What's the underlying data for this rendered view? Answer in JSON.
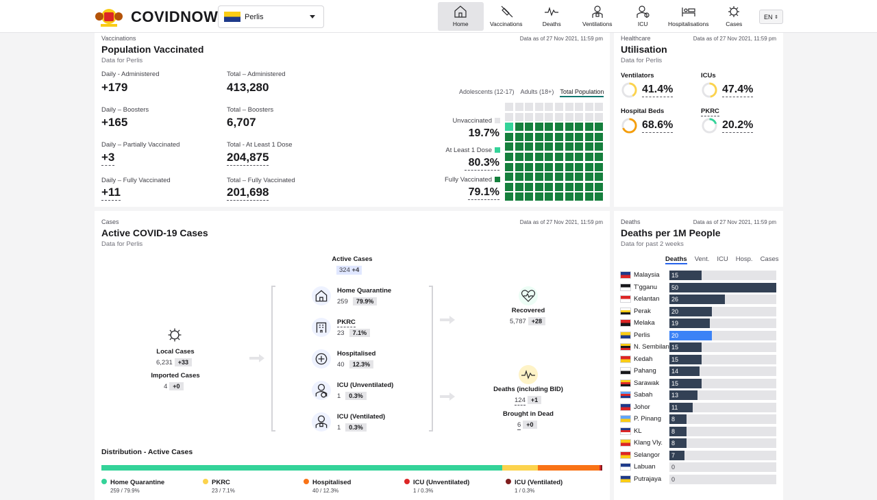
{
  "header": {
    "brand": "COVIDNOW",
    "state": "Perlis",
    "lang": "EN",
    "nav": [
      {
        "label": "Home",
        "icon": "home-icon"
      },
      {
        "label": "Vaccinations",
        "icon": "syringe-icon"
      },
      {
        "label": "Deaths",
        "icon": "pulse-icon"
      },
      {
        "label": "Ventilations",
        "icon": "ventilator-icon"
      },
      {
        "label": "ICU",
        "icon": "icu-icon"
      },
      {
        "label": "Hospitalisations",
        "icon": "bed-icon"
      },
      {
        "label": "Cases",
        "icon": "virus-icon"
      }
    ]
  },
  "vaccinations": {
    "eyebrow": "Vaccinations",
    "as_of": "Data as of 27 Nov 2021, 11:59 pm",
    "title": "Population Vaccinated",
    "sub": "Data for Perlis",
    "stats": [
      {
        "label": "Daily - Administered",
        "value": "+179"
      },
      {
        "label": "Total – Administered",
        "value": "413,280"
      },
      {
        "label": "Daily – Boosters",
        "value": "+165"
      },
      {
        "label": "Total – Boosters",
        "value": "6,707"
      },
      {
        "label": "Daily – Partially Vaccinated",
        "value": "+3"
      },
      {
        "label": "Total - At Least 1 Dose",
        "value": "204,875"
      },
      {
        "label": "Daily – Fully Vaccinated",
        "value": "+11"
      },
      {
        "label": "Total – Fully Vaccinated",
        "value": "201,698"
      }
    ],
    "tabs": [
      "Adolescents (12-17)",
      "Adults (18+)",
      "Total Population"
    ],
    "waffle": [
      {
        "label": "Unvaccinated",
        "pct": "19.7%",
        "color": "#e4e4e7"
      },
      {
        "label": "At Least 1 Dose",
        "pct": "80.3%",
        "color": "#34d399"
      },
      {
        "label": "Fully Vaccinated",
        "pct": "79.1%",
        "color": "#15803d"
      }
    ],
    "waffle_fraction": {
      "fully": 0.791,
      "partial": 0.012
    }
  },
  "utilisation": {
    "eyebrow": "Healthcare",
    "as_of": "Data as of 27 Nov 2021, 11:59 pm",
    "title": "Utilisation",
    "sub": "Data for Perlis",
    "items": [
      {
        "label": "Ventilators",
        "value": "41.4%",
        "fraction": 0.414,
        "color": "#fcd34d"
      },
      {
        "label": "ICUs",
        "value": "47.4%",
        "fraction": 0.474,
        "color": "#fcd34d"
      },
      {
        "label": "Hospital Beds",
        "value": "68.6%",
        "fraction": 0.686,
        "color": "#f59e0b"
      },
      {
        "label": "PKRC",
        "value": "20.2%",
        "fraction": 0.202,
        "color": "#34d399"
      }
    ]
  },
  "cases": {
    "eyebrow": "Cases",
    "as_of": "Data as of 27 Nov 2021, 11:59 pm",
    "title": "Active COVID-19 Cases",
    "sub": "Data for Perlis",
    "active": {
      "label": "Active Cases",
      "value": "324",
      "delta": "+4"
    },
    "local": {
      "label": "Local Cases",
      "value": "6,231",
      "delta": "+33"
    },
    "imported": {
      "label": "Imported Cases",
      "value": "4",
      "delta": "+0"
    },
    "mid": [
      {
        "label": "Home Quarantine",
        "value": "259",
        "pct": "79.9%"
      },
      {
        "label": "PKRC",
        "value": "23",
        "pct": "7.1%"
      },
      {
        "label": "Hospitalised",
        "value": "40",
        "pct": "12.3%"
      },
      {
        "label": "ICU (Unventilated)",
        "value": "1",
        "pct": "0.3%"
      },
      {
        "label": "ICU (Ventilated)",
        "value": "1",
        "pct": "0.3%"
      }
    ],
    "recovered": {
      "label": "Recovered",
      "value": "5,787",
      "delta": "+28"
    },
    "deaths": {
      "label": "Deaths (including BID)",
      "value": "124",
      "delta": "+1"
    },
    "bid": {
      "label": "Brought in Dead",
      "value": "6",
      "delta": "+0"
    },
    "dist_title": "Distribution - Active Cases",
    "dist": [
      {
        "label": "Home Quarantine",
        "sub": "259 / 79.9%",
        "share": 79.9,
        "color": "#34d399"
      },
      {
        "label": "PKRC",
        "sub": "23 / 7.1%",
        "share": 7.1,
        "color": "#fcd34d"
      },
      {
        "label": "Hospitalised",
        "sub": "40 / 12.3%",
        "share": 12.3,
        "color": "#f97316"
      },
      {
        "label": "ICU (Unventilated)",
        "sub": "1 / 0.3%",
        "share": 0.3,
        "color": "#dc2626"
      },
      {
        "label": "ICU (Ventilated)",
        "sub": "1 / 0.3%",
        "share": 0.3,
        "color": "#7f1d1d"
      }
    ]
  },
  "deaths_card": {
    "eyebrow": "Deaths",
    "as_of": "Data as of 27 Nov 2021, 11:59 pm",
    "title": "Deaths per 1M People",
    "sub": "Data for past 2 weeks",
    "tabs": [
      "Deaths",
      "Vent.",
      "ICU",
      "Hosp.",
      "Cases"
    ],
    "max": 50,
    "rows": [
      {
        "name": "Malaysia",
        "value": 15,
        "flag": [
          "#1e3a8a",
          "#dc2626"
        ]
      },
      {
        "name": "T'gganu",
        "value": 50,
        "flag": [
          "#18181b",
          "#fff"
        ]
      },
      {
        "name": "Kelantan",
        "value": 26,
        "flag": [
          "#dc2626",
          "#fff"
        ]
      },
      {
        "name": "Perak",
        "value": 20,
        "flag": [
          "#fff",
          "#facc15",
          "#18181b"
        ]
      },
      {
        "name": "Melaka",
        "value": 19,
        "flag": [
          "#dc2626",
          "#18181b"
        ]
      },
      {
        "name": "Perlis",
        "value": 20,
        "flag": [
          "#facc15",
          "#1e3a8a"
        ],
        "highlight": true
      },
      {
        "name": "N. Sembilan",
        "value": 15,
        "flag": [
          "#facc15",
          "#18181b",
          "#dc2626"
        ]
      },
      {
        "name": "Kedah",
        "value": 15,
        "flag": [
          "#dc2626",
          "#facc15"
        ]
      },
      {
        "name": "Pahang",
        "value": 14,
        "flag": [
          "#fff",
          "#18181b"
        ]
      },
      {
        "name": "Sarawak",
        "value": 15,
        "flag": [
          "#facc15",
          "#dc2626",
          "#18181b"
        ]
      },
      {
        "name": "Sabah",
        "value": 13,
        "flag": [
          "#60a5fa",
          "#dc2626",
          "#1e3a8a"
        ]
      },
      {
        "name": "Johor",
        "value": 11,
        "flag": [
          "#1e3a8a",
          "#dc2626"
        ]
      },
      {
        "name": "P. Pinang",
        "value": 8,
        "flag": [
          "#60a5fa",
          "#facc15"
        ]
      },
      {
        "name": "KL",
        "value": 8,
        "flag": [
          "#1e3a8a",
          "#dc2626",
          "#fff"
        ]
      },
      {
        "name": "Klang Vly.",
        "value": 8,
        "flag": [
          "#facc15",
          "#dc2626"
        ]
      },
      {
        "name": "Selangor",
        "value": 7,
        "flag": [
          "#dc2626",
          "#facc15"
        ]
      },
      {
        "name": "Labuan",
        "value": 0,
        "flag": [
          "#1e3a8a",
          "#fff"
        ]
      },
      {
        "name": "Putrajaya",
        "value": 0,
        "flag": [
          "#1e3a8a",
          "#facc15"
        ]
      }
    ]
  }
}
